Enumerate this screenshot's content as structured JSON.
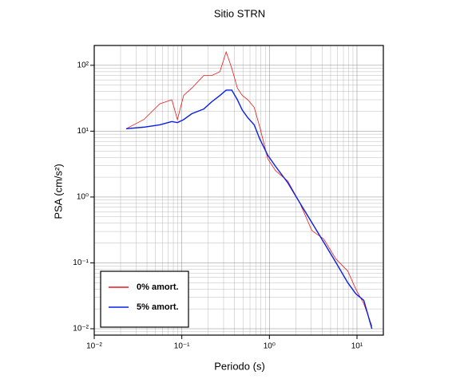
{
  "chart_data": {
    "type": "line",
    "title": "Sitio STRN",
    "x_label": "Periodo (s)",
    "y_label": "PSA (cm/s²)",
    "x_log": true,
    "y_log": true,
    "grid": true,
    "minor_grid": true,
    "legend": "lower left",
    "xlim": [
      0.01,
      20
    ],
    "ylim": [
      0.008,
      200
    ],
    "xticks": [
      {
        "value": 0.01,
        "label": "10⁻²"
      },
      {
        "value": 0.1,
        "label": "10⁻¹"
      },
      {
        "value": 1,
        "label": "10⁰"
      },
      {
        "value": 10,
        "label": "10¹"
      }
    ],
    "yticks": [
      {
        "value": 0.01,
        "label": "10⁻²"
      },
      {
        "value": 0.1,
        "label": "10⁻¹"
      },
      {
        "value": 1,
        "label": "10⁰"
      },
      {
        "value": 10,
        "label": "10¹"
      },
      {
        "value": 100,
        "label": "10²"
      }
    ],
    "x": [
      0.0232,
      0.0368,
      0.0561,
      0.0769,
      0.0891,
      0.105,
      0.13,
      0.178,
      0.22,
      0.272,
      0.321,
      0.372,
      0.431,
      0.489,
      0.567,
      0.67,
      0.777,
      0.959,
      1.18,
      1.62,
      2.22,
      3.05,
      4.18,
      5.73,
      7.85,
      9.69,
      11.96,
      14.8
    ],
    "series": [
      {
        "name": "0% amort.",
        "color": "#e8191c",
        "values": [
          10.9,
          15,
          26,
          30,
          15,
          35,
          45,
          70,
          70,
          80,
          160,
          90,
          45,
          35,
          30,
          23,
          11.5,
          3.8,
          2.5,
          1.75,
          0.82,
          0.31,
          0.23,
          0.115,
          0.075,
          0.04,
          0.024,
          0.011
        ]
      },
      {
        "name": "5% amort.",
        "color": "#0a1ee6",
        "values": [
          10.9,
          11.5,
          12.5,
          14,
          13.5,
          15,
          18.4,
          21.7,
          28,
          34.8,
          42,
          42,
          30,
          21,
          16,
          12.5,
          7.6,
          4.3,
          2.9,
          1.65,
          0.82,
          0.41,
          0.205,
          0.102,
          0.05,
          0.034,
          0.027,
          0.01
        ]
      }
    ]
  }
}
